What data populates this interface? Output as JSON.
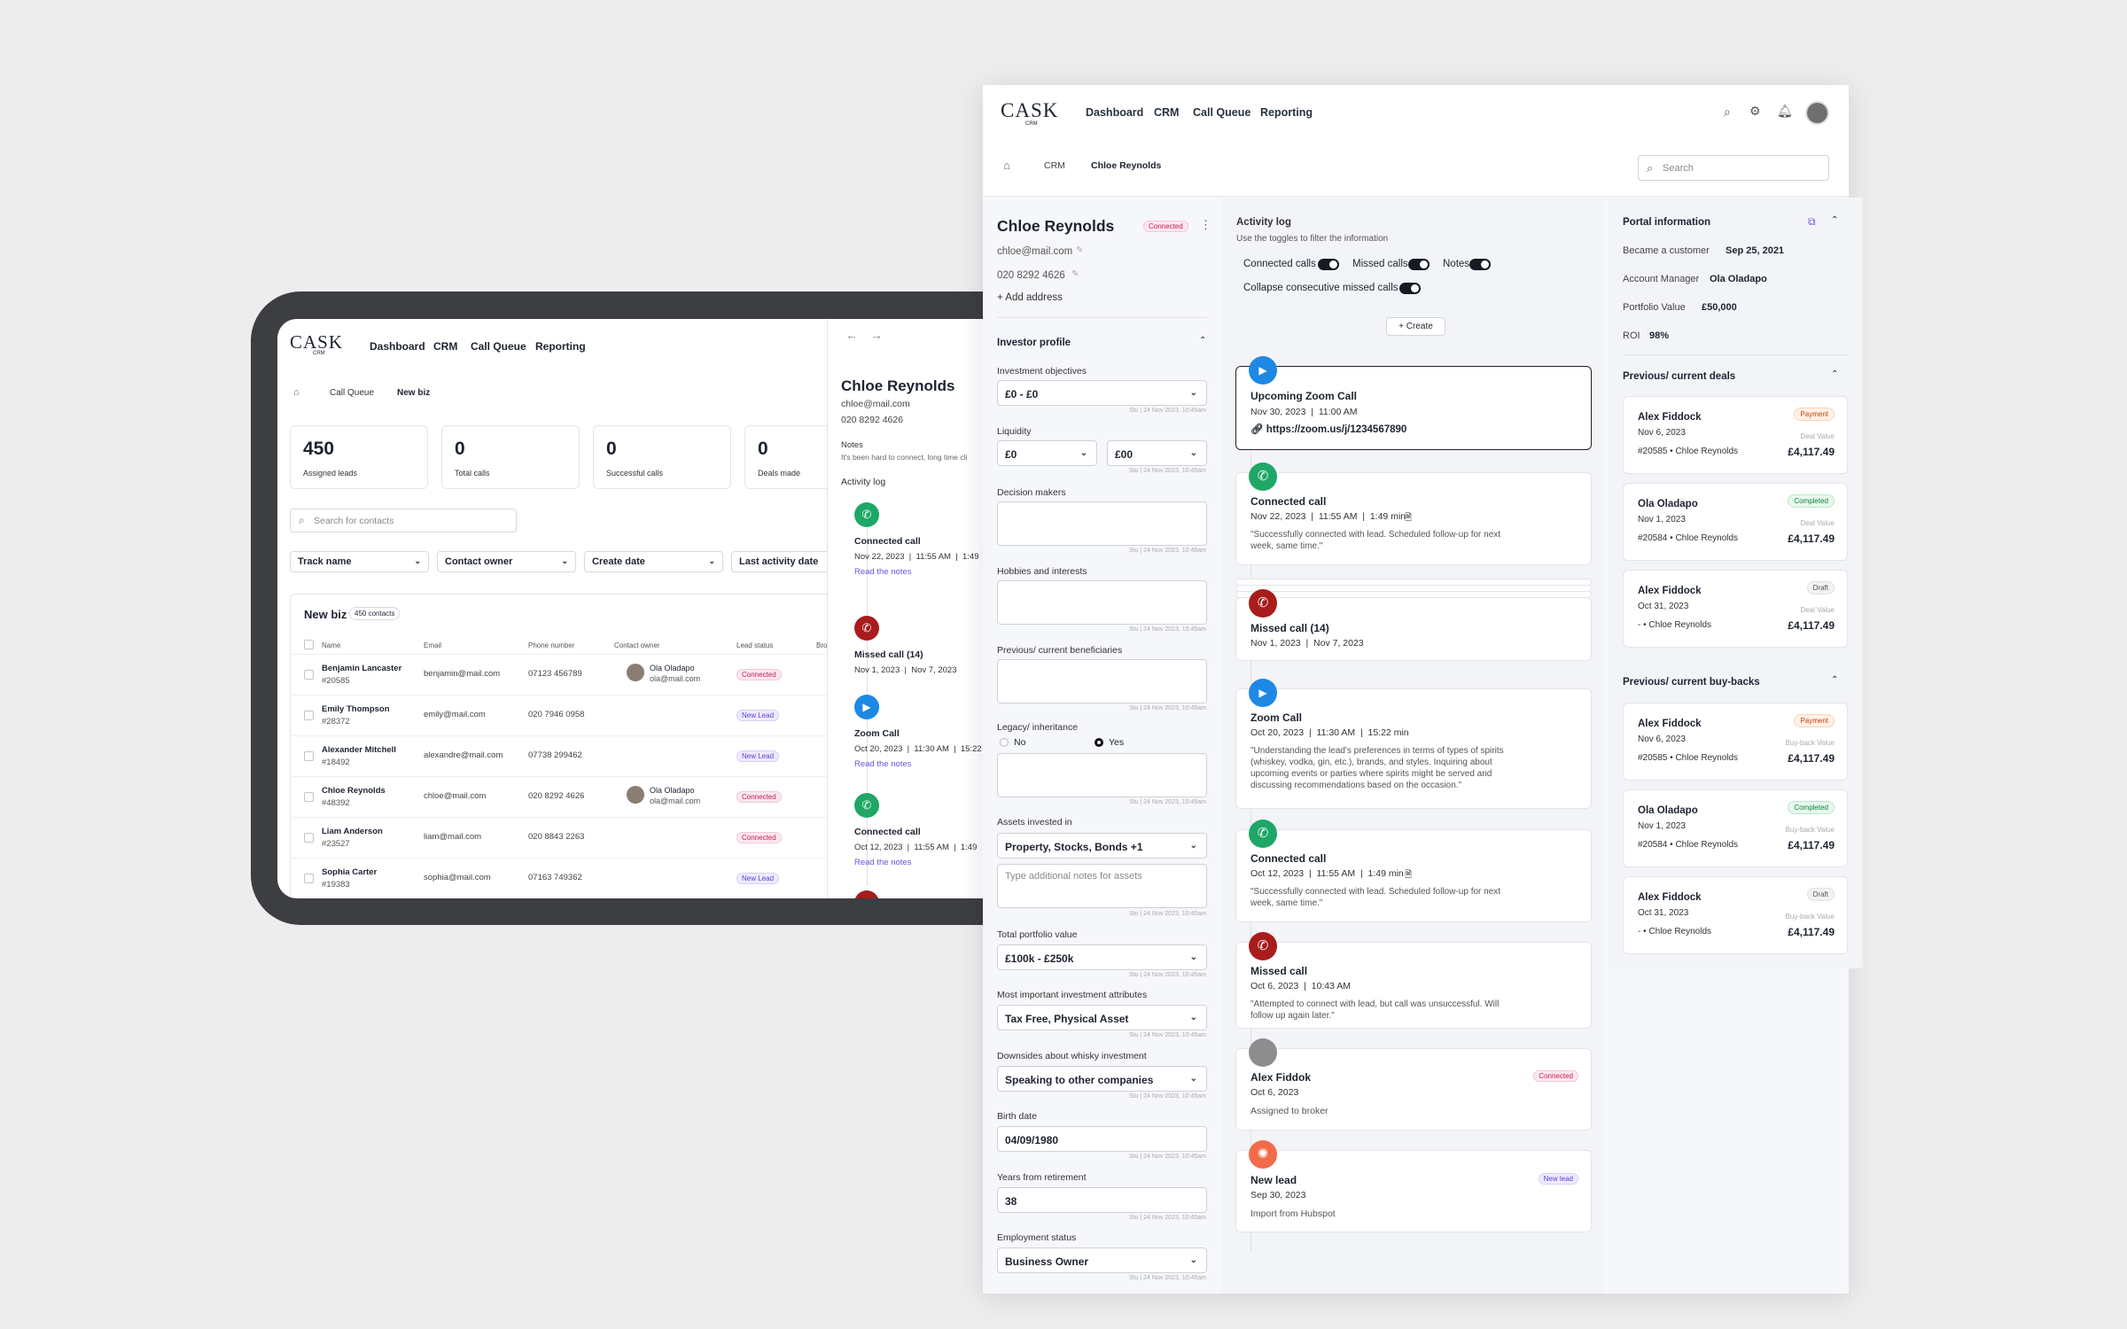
{
  "brand": {
    "logo": "CASK",
    "sub": "CRM"
  },
  "nav": [
    "Dashboard",
    "CRM",
    "Call Queue",
    "Reporting"
  ],
  "tablet": {
    "breadcrumb": [
      "Call Queue",
      "New biz"
    ],
    "stats": [
      {
        "value": "450",
        "label": "Assigned leads"
      },
      {
        "value": "0",
        "label": "Total calls"
      },
      {
        "value": "0",
        "label": "Successful calls"
      },
      {
        "value": "0",
        "label": "Deals made"
      }
    ],
    "search_placeholder": "Search for contacts",
    "filters": [
      "Track name",
      "Contact owner",
      "Create date",
      "Last activity date"
    ],
    "table_title": "New biz",
    "table_count": "450 contacts",
    "columns": [
      "Name",
      "Email",
      "Phone number",
      "Contact owner",
      "Lead status",
      "Bro"
    ],
    "rows": [
      {
        "name": "Benjamin Lancaster",
        "id": "#20585",
        "email": "benjamin@mail.com",
        "phone": "07123 456789",
        "owner": "Ola Oladapo",
        "owner_email": "ola@mail.com",
        "status": "Connected"
      },
      {
        "name": "Emily Thompson",
        "id": "#28372",
        "email": "emily@mail.com",
        "phone": "020 7946 0958",
        "owner": "",
        "owner_email": "",
        "status": "New Lead"
      },
      {
        "name": "Alexander Mitchell",
        "id": "#18492",
        "email": "alexandre@mail.com",
        "phone": "07738 299462",
        "owner": "",
        "owner_email": "",
        "status": "New Lead"
      },
      {
        "name": "Chloe Reynolds",
        "id": "#48392",
        "email": "chloe@mail.com",
        "phone": "020 8292 4626",
        "owner": "Ola Oladapo",
        "owner_email": "ola@mail.com",
        "status": "Connected"
      },
      {
        "name": "Liam Anderson",
        "id": "#23527",
        "email": "liam@mail.com",
        "phone": "020 8843 2263",
        "owner": "",
        "owner_email": "",
        "status": "Connected"
      },
      {
        "name": "Sophia Carter",
        "id": "#19383",
        "email": "sophia@mail.com",
        "phone": "07163 749362",
        "owner": "",
        "owner_email": "",
        "status": "New Lead"
      }
    ],
    "panel": {
      "name": "Chloe Reynolds",
      "email": "chloe@mail.com",
      "phone": "020 8292 4626",
      "notes_label": "Notes",
      "notes": "It's been hard to connect, long time cli",
      "activity": "Activity log",
      "items": [
        {
          "title": "Connected call",
          "meta": "Nov 22, 2023  |  11:55 AM  |  1:49",
          "link": "Read the notes"
        },
        {
          "title": "Missed call (14)",
          "meta": "Nov 1, 2023  |  Nov 7, 2023",
          "link": ""
        },
        {
          "title": "Zoom Call",
          "meta": "Oct 20, 2023  |  11:30 AM  |  15:22",
          "link": "Read the notes"
        },
        {
          "title": "Connected call",
          "meta": "Oct 12, 2023  |  11:55 AM  |  1:49",
          "link": "Read the notes"
        }
      ]
    }
  },
  "main": {
    "breadcrumb": [
      "CRM",
      "Chloe Reynolds"
    ],
    "search_placeholder": "Search",
    "contact": {
      "name": "Chloe Reynolds",
      "status": "Connected",
      "email": "chloe@mail.com",
      "phone": "020 8292 4626",
      "add_address": "Add address"
    },
    "profile": {
      "title": "Investor profile",
      "stamp": "Stu | 24 Nov 2023, 10:45am",
      "investment_objectives_label": "Investment objectives",
      "investment_objectives": "£0 - £0",
      "liquidity_label": "Liquidity",
      "liquidity_a": "£0",
      "liquidity_b": "£00",
      "decision_makers_label": "Decision makers",
      "hobbies_label": "Hobbies and interests",
      "beneficiaries_label": "Previous/ current beneficiaries",
      "legacy_label": "Legacy/ inheritance",
      "legacy_no": "No",
      "legacy_yes": "Yes",
      "assets_label": "Assets invested in",
      "assets": "Property, Stocks, Bonds +1",
      "assets_notes_placeholder": "Type additional notes for assets",
      "portfolio_label": "Total portfolio value",
      "portfolio": "£100k - £250k",
      "attributes_label": "Most important investment attributes",
      "attributes": "Tax Free, Physical Asset",
      "downsides_label": "Downsides about whisky investment",
      "downsides": "Speaking to other companies",
      "birth_label": "Birth date",
      "birth": "04/09/1980",
      "retire_label": "Years from retirement",
      "retire": "38",
      "employment_label": "Employment status",
      "employment": "Business Owner"
    },
    "activity": {
      "title": "Activity log",
      "subtitle": "Use the toggles to filter the information",
      "toggles": [
        "Connected calls",
        "Missed calls",
        "Notes",
        "Collapse consecutive missed calls"
      ],
      "create": "Create",
      "items": [
        {
          "title": "Upcoming Zoom Call",
          "meta": "Nov 30, 2023  |  11:00 AM",
          "link": "https://zoom.us/j/1234567890"
        },
        {
          "title": "Connected call",
          "meta": "Nov 22, 2023  |  11:55 AM  |  1:49 min",
          "quote": "\"Successfully connected with lead. Scheduled follow-up for next week, same time.\""
        },
        {
          "title": "Missed call (14)",
          "meta": "Nov 1, 2023  |  Nov 7, 2023"
        },
        {
          "title": "Zoom Call",
          "meta": "Oct 20, 2023  |  11:30 AM  |  15:22 min",
          "quote": "\"Understanding the lead's preferences in terms of types of spirits (whiskey, vodka, gin, etc.), brands, and styles. Inquiring about upcoming events or parties where spirits might be served and discussing recommendations based on the occasion.\""
        },
        {
          "title": "Connected call",
          "meta": "Oct 12, 2023  |  11:55 AM  |  1:49 min",
          "quote": "\"Successfully connected with lead. Scheduled follow-up for next week, same time.\""
        },
        {
          "title": "Missed call",
          "meta": "Oct 6, 2023  |  10:43 AM",
          "quote": "\"Attempted to connect with lead, but call was unsuccessful. Will follow up again later.\""
        },
        {
          "title": "Alex Fiddok",
          "meta": "Oct 6, 2023",
          "quote": "Assigned to broker",
          "badge": "Connected"
        },
        {
          "title": "New lead",
          "meta": "Sep 30, 2023",
          "quote": "Import from Hubspot",
          "badge": "New lead"
        }
      ]
    },
    "portal": {
      "title": "Portal information",
      "rows": [
        {
          "label": "Became a customer",
          "value": "Sep 25, 2021"
        },
        {
          "label": "Account Manager",
          "value": "Ola Oladapo"
        },
        {
          "label": "Portfolio Value",
          "value": "£50,000"
        },
        {
          "label": "ROI",
          "value": "98%"
        }
      ]
    },
    "deals": {
      "title": "Previous/ current deals",
      "value_label": "Deal Value",
      "items": [
        {
          "name": "Alex Fiddock",
          "date": "Nov 6, 2023",
          "id": "#20585",
          "contact": "Chloe Reynolds",
          "amount": "£4,117.49",
          "status": "Payment"
        },
        {
          "name": "Ola Oladapo",
          "date": "Nov 1, 2023",
          "id": "#20584",
          "contact": "Chloe Reynolds",
          "amount": "£4,117.49",
          "status": "Completed"
        },
        {
          "name": "Alex Fiddock",
          "date": "Oct 31, 2023",
          "id": "-",
          "contact": "Chloe Reynolds",
          "amount": "£4,117.49",
          "status": "Draft"
        }
      ]
    },
    "buybacks": {
      "title": "Previous/ current buy-backs",
      "value_label": "Buy-back Value",
      "items": [
        {
          "name": "Alex Fiddock",
          "date": "Nov 6, 2023",
          "id": "#20585",
          "contact": "Chloe Reynolds",
          "amount": "£4,117.49",
          "status": "Payment"
        },
        {
          "name": "Ola Oladapo",
          "date": "Nov 1, 2023",
          "id": "#20584",
          "contact": "Chloe Reynolds",
          "amount": "£4,117.49",
          "status": "Completed"
        },
        {
          "name": "Alex Fiddock",
          "date": "Oct 31, 2023",
          "id": "-",
          "contact": "Chloe Reynolds",
          "amount": "£4,117.49",
          "status": "Draft"
        }
      ]
    }
  }
}
